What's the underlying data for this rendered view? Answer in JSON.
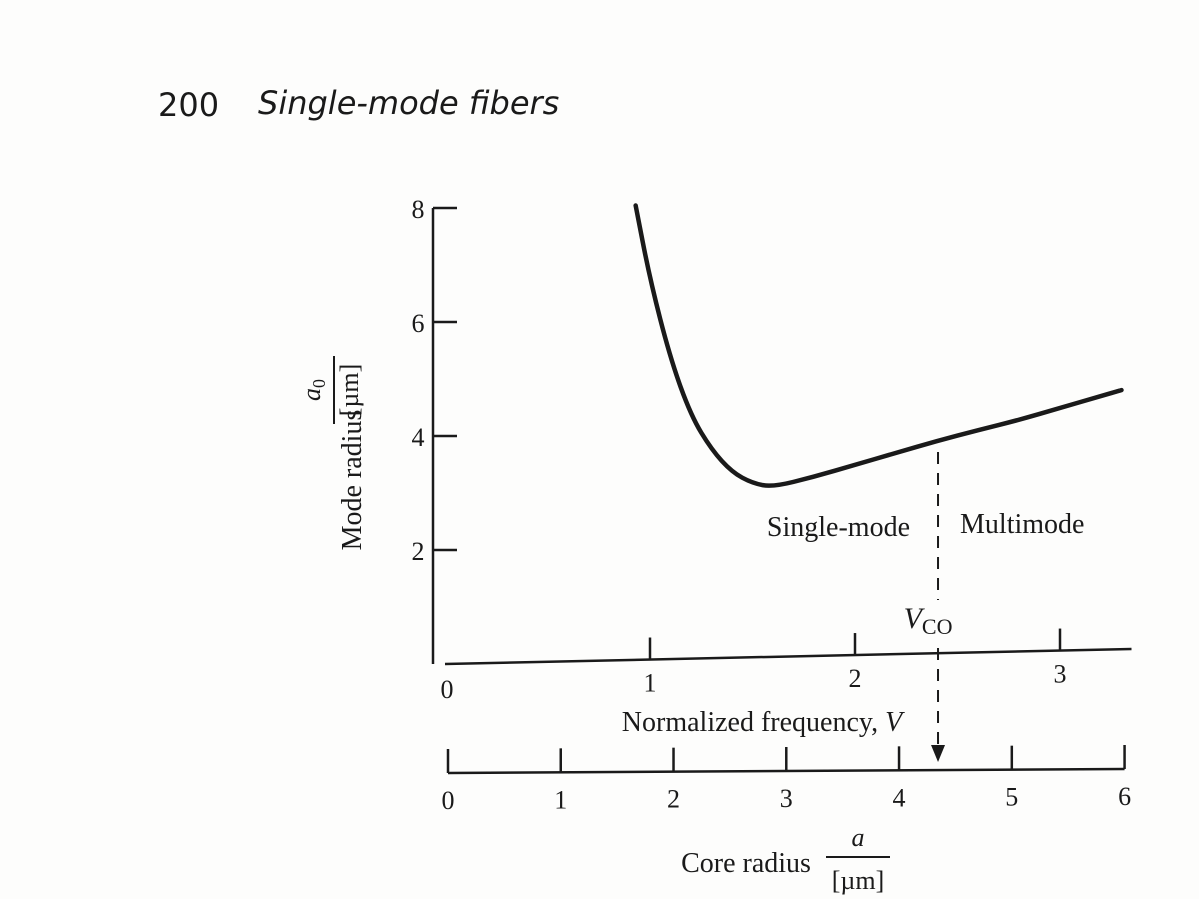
{
  "header": {
    "page_number": "200",
    "running_head": "Single-mode fibers"
  },
  "chart_data": {
    "type": "line",
    "title": "",
    "ylabel": "Mode radius",
    "ylabel_fraction": {
      "numerator": "a",
      "numerator_subscript": "0",
      "denominator": "[µm]"
    },
    "xlabel": "Normalized frequency, ",
    "xlabel_var": "V",
    "secondary_xlabel": "Core radius",
    "secondary_xlabel_fraction": {
      "numerator": "a",
      "denominator": "[µm]"
    },
    "ylim": [
      0,
      8
    ],
    "yticks": [
      2,
      4,
      6,
      8
    ],
    "xlim": [
      0,
      3.3
    ],
    "xticks": [
      1,
      2,
      3
    ],
    "origin_label": "0",
    "secondary_axis": {
      "ticks": [
        0,
        1,
        2,
        3,
        4,
        5,
        6
      ],
      "a_per_V": 1.818
    },
    "series": [
      {
        "x": [
          0.93,
          1.0,
          1.1,
          1.2,
          1.3,
          1.4,
          1.5,
          1.6,
          1.8,
          2.0,
          2.2,
          2.4,
          2.6,
          2.8,
          3.0,
          3.2,
          3.3
        ],
        "y": [
          8.0,
          6.7,
          5.3,
          4.3,
          3.7,
          3.3,
          3.1,
          3.03,
          3.2,
          3.4,
          3.6,
          3.8,
          3.98,
          4.15,
          4.35,
          4.55,
          4.65
        ]
      }
    ],
    "cutoff": {
      "V": 2.405,
      "label": "V",
      "label_subscript": "CO"
    },
    "annotations": {
      "left_region": "Single-mode",
      "right_region": "Multimode"
    }
  }
}
